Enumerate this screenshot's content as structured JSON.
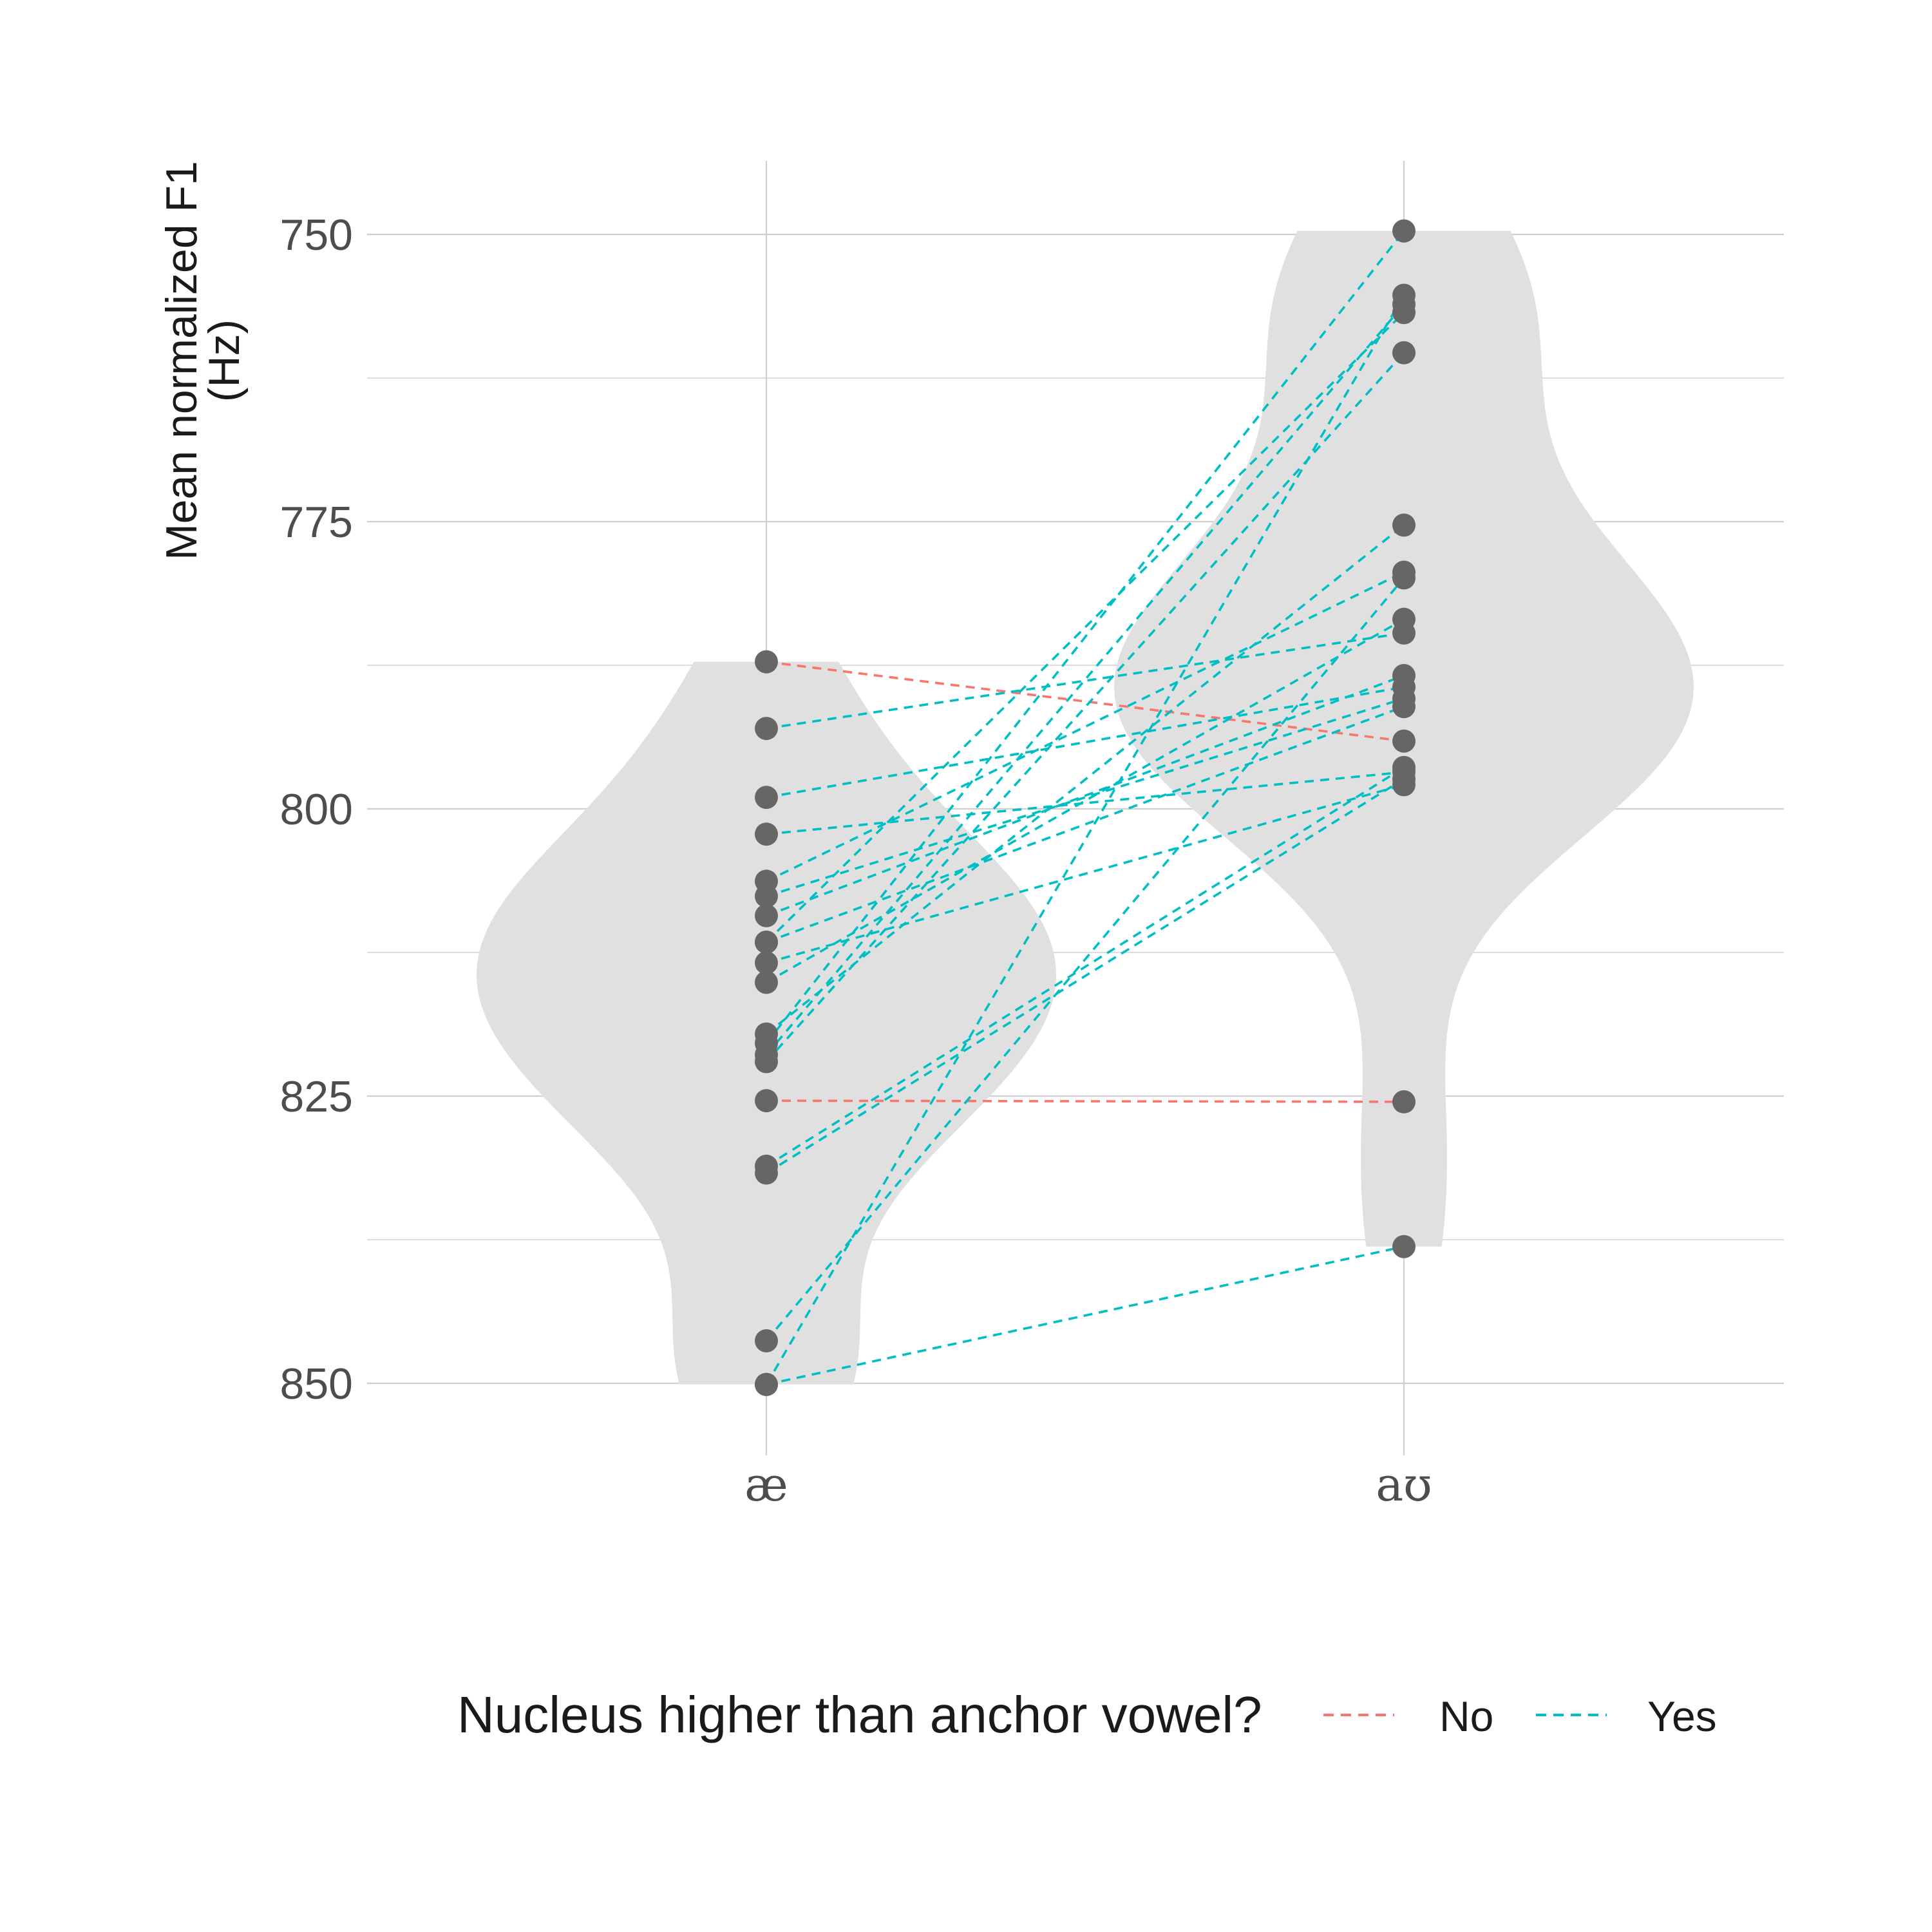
{
  "chart_data": {
    "type": "scatter",
    "subtype": "violin-paired-points",
    "ylabel": [
      "Mean normalized F1",
      "(Hz)"
    ],
    "y_reversed": true,
    "ylim": [
      743.5,
      850.8
    ],
    "y_ticks": [
      750,
      775,
      800,
      825,
      850
    ],
    "y_minor_ticks": [
      762.5,
      787.5,
      812.5,
      837.5
    ],
    "categories": [
      "æ",
      "aʊ"
    ],
    "legend": {
      "title": "Nucleus higher than anchor vowel?",
      "position": "bottom",
      "entries": [
        {
          "label": "No",
          "color": "#F8766D"
        },
        {
          "label": "Yes",
          "color": "#00BFC4"
        }
      ]
    },
    "colors": {
      "violin": "#e0e0e0",
      "point": "#666666",
      "grid": "#d0d0d0"
    },
    "pairs": [
      {
        "ae": 787.2,
        "aw": 794.1,
        "group": "No"
      },
      {
        "ae": 825.4,
        "aw": 825.5,
        "group": "No"
      },
      {
        "ae": 793.0,
        "aw": 784.7,
        "group": "Yes"
      },
      {
        "ae": 799.0,
        "aw": 789.4,
        "group": "Yes"
      },
      {
        "ae": 802.2,
        "aw": 796.8,
        "group": "Yes"
      },
      {
        "ae": 806.3,
        "aw": 779.4,
        "group": "Yes"
      },
      {
        "ae": 807.6,
        "aw": 790.4,
        "group": "Yes"
      },
      {
        "ae": 809.3,
        "aw": 788.4,
        "group": "Yes"
      },
      {
        "ae": 811.6,
        "aw": 791.1,
        "group": "Yes"
      },
      {
        "ae": 813.4,
        "aw": 797.9,
        "group": "Yes"
      },
      {
        "ae": 815.1,
        "aw": 783.5,
        "group": "Yes"
      },
      {
        "ae": 819.6,
        "aw": 775.3,
        "group": "Yes"
      },
      {
        "ae": 820.4,
        "aw": 749.7,
        "group": "Yes"
      },
      {
        "ae": 821.4,
        "aw": 756.1,
        "group": "Yes"
      },
      {
        "ae": 822.0,
        "aw": 760.3,
        "group": "Yes"
      },
      {
        "ae": 831.1,
        "aw": 796.4,
        "group": "Yes"
      },
      {
        "ae": 831.7,
        "aw": 797.4,
        "group": "Yes"
      },
      {
        "ae": 846.3,
        "aw": 779.9,
        "group": "Yes"
      },
      {
        "ae": 850.1,
        "aw": 755.3,
        "group": "Yes"
      },
      {
        "ae": 850.1,
        "aw": 838.1,
        "group": "Yes"
      },
      {
        "ae": 811.6,
        "aw": 756.8,
        "group": "Yes"
      }
    ]
  }
}
